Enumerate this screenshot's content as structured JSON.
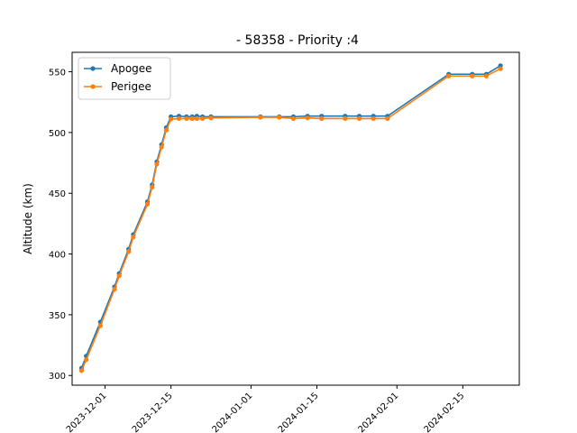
{
  "chart_data": {
    "type": "line",
    "title": "- 58358 - Priority :4",
    "xlabel": "",
    "ylabel": "Altitude (km)",
    "x_type": "date",
    "xlim": [
      "2023-11-24",
      "2024-02-27"
    ],
    "ylim": [
      292,
      566
    ],
    "xticks": [
      "2023-12-01",
      "2023-12-15",
      "2024-01-01",
      "2024-01-15",
      "2024-02-01",
      "2024-02-15"
    ],
    "yticks": [
      300,
      350,
      400,
      450,
      500,
      550
    ],
    "legend_position": "upper left",
    "grid": false,
    "series": [
      {
        "name": "Apogee",
        "color": "#1f77b4",
        "marker": "circle",
        "points": [
          [
            "2023-11-26",
            306
          ],
          [
            "2023-11-27",
            316
          ],
          [
            "2023-11-30",
            344
          ],
          [
            "2023-12-03",
            373
          ],
          [
            "2023-12-04",
            384
          ],
          [
            "2023-12-06",
            404
          ],
          [
            "2023-12-07",
            416
          ],
          [
            "2023-12-10",
            443
          ],
          [
            "2023-12-11",
            457
          ],
          [
            "2023-12-12",
            476
          ],
          [
            "2023-12-13",
            490
          ],
          [
            "2023-12-14",
            504
          ],
          [
            "2023-12-15",
            513
          ],
          [
            "2023-12-16.7",
            513.5
          ],
          [
            "2023-12-18.3",
            513
          ],
          [
            "2023-12-19.5",
            513
          ],
          [
            "2023-12-20.5",
            513.5
          ],
          [
            "2023-12-21.7",
            513
          ],
          [
            "2023-12-23.5",
            513
          ],
          [
            "2024-01-03",
            513
          ],
          [
            "2024-01-07",
            513
          ],
          [
            "2024-01-10",
            513
          ],
          [
            "2024-01-13",
            513.5
          ],
          [
            "2024-01-16",
            513.5
          ],
          [
            "2024-01-21",
            513.5
          ],
          [
            "2024-01-24",
            513.5
          ],
          [
            "2024-01-27",
            513.5
          ],
          [
            "2024-01-30",
            513.5
          ],
          [
            "2024-02-12",
            548
          ],
          [
            "2024-02-17",
            548
          ],
          [
            "2024-02-20",
            548
          ],
          [
            "2024-02-23",
            555
          ]
        ]
      },
      {
        "name": "Perigee",
        "color": "#ff7f0e",
        "marker": "circle",
        "points": [
          [
            "2023-11-26",
            304
          ],
          [
            "2023-11-27",
            313
          ],
          [
            "2023-11-30",
            341
          ],
          [
            "2023-12-03",
            371
          ],
          [
            "2023-12-04",
            382
          ],
          [
            "2023-12-06",
            402
          ],
          [
            "2023-12-07",
            414
          ],
          [
            "2023-12-10",
            441
          ],
          [
            "2023-12-11",
            455
          ],
          [
            "2023-12-12",
            474
          ],
          [
            "2023-12-13",
            488
          ],
          [
            "2023-12-14",
            502
          ],
          [
            "2023-12-15",
            511
          ],
          [
            "2023-12-16.7",
            511.5
          ],
          [
            "2023-12-18.3",
            511.5
          ],
          [
            "2023-12-19.5",
            511.5
          ],
          [
            "2023-12-20.5",
            511.5
          ],
          [
            "2023-12-21.7",
            511.5
          ],
          [
            "2023-12-23.5",
            512
          ],
          [
            "2024-01-03",
            512.5
          ],
          [
            "2024-01-07",
            512.5
          ],
          [
            "2024-01-10",
            511.5
          ],
          [
            "2024-01-13",
            512
          ],
          [
            "2024-01-16",
            511.5
          ],
          [
            "2024-01-21",
            511.5
          ],
          [
            "2024-01-24",
            511.5
          ],
          [
            "2024-01-27",
            511.5
          ],
          [
            "2024-01-30",
            511.5
          ],
          [
            "2024-02-12",
            546.5
          ],
          [
            "2024-02-17",
            546.5
          ],
          [
            "2024-02-20",
            546.5
          ],
          [
            "2024-02-23",
            552.5
          ]
        ]
      }
    ]
  }
}
